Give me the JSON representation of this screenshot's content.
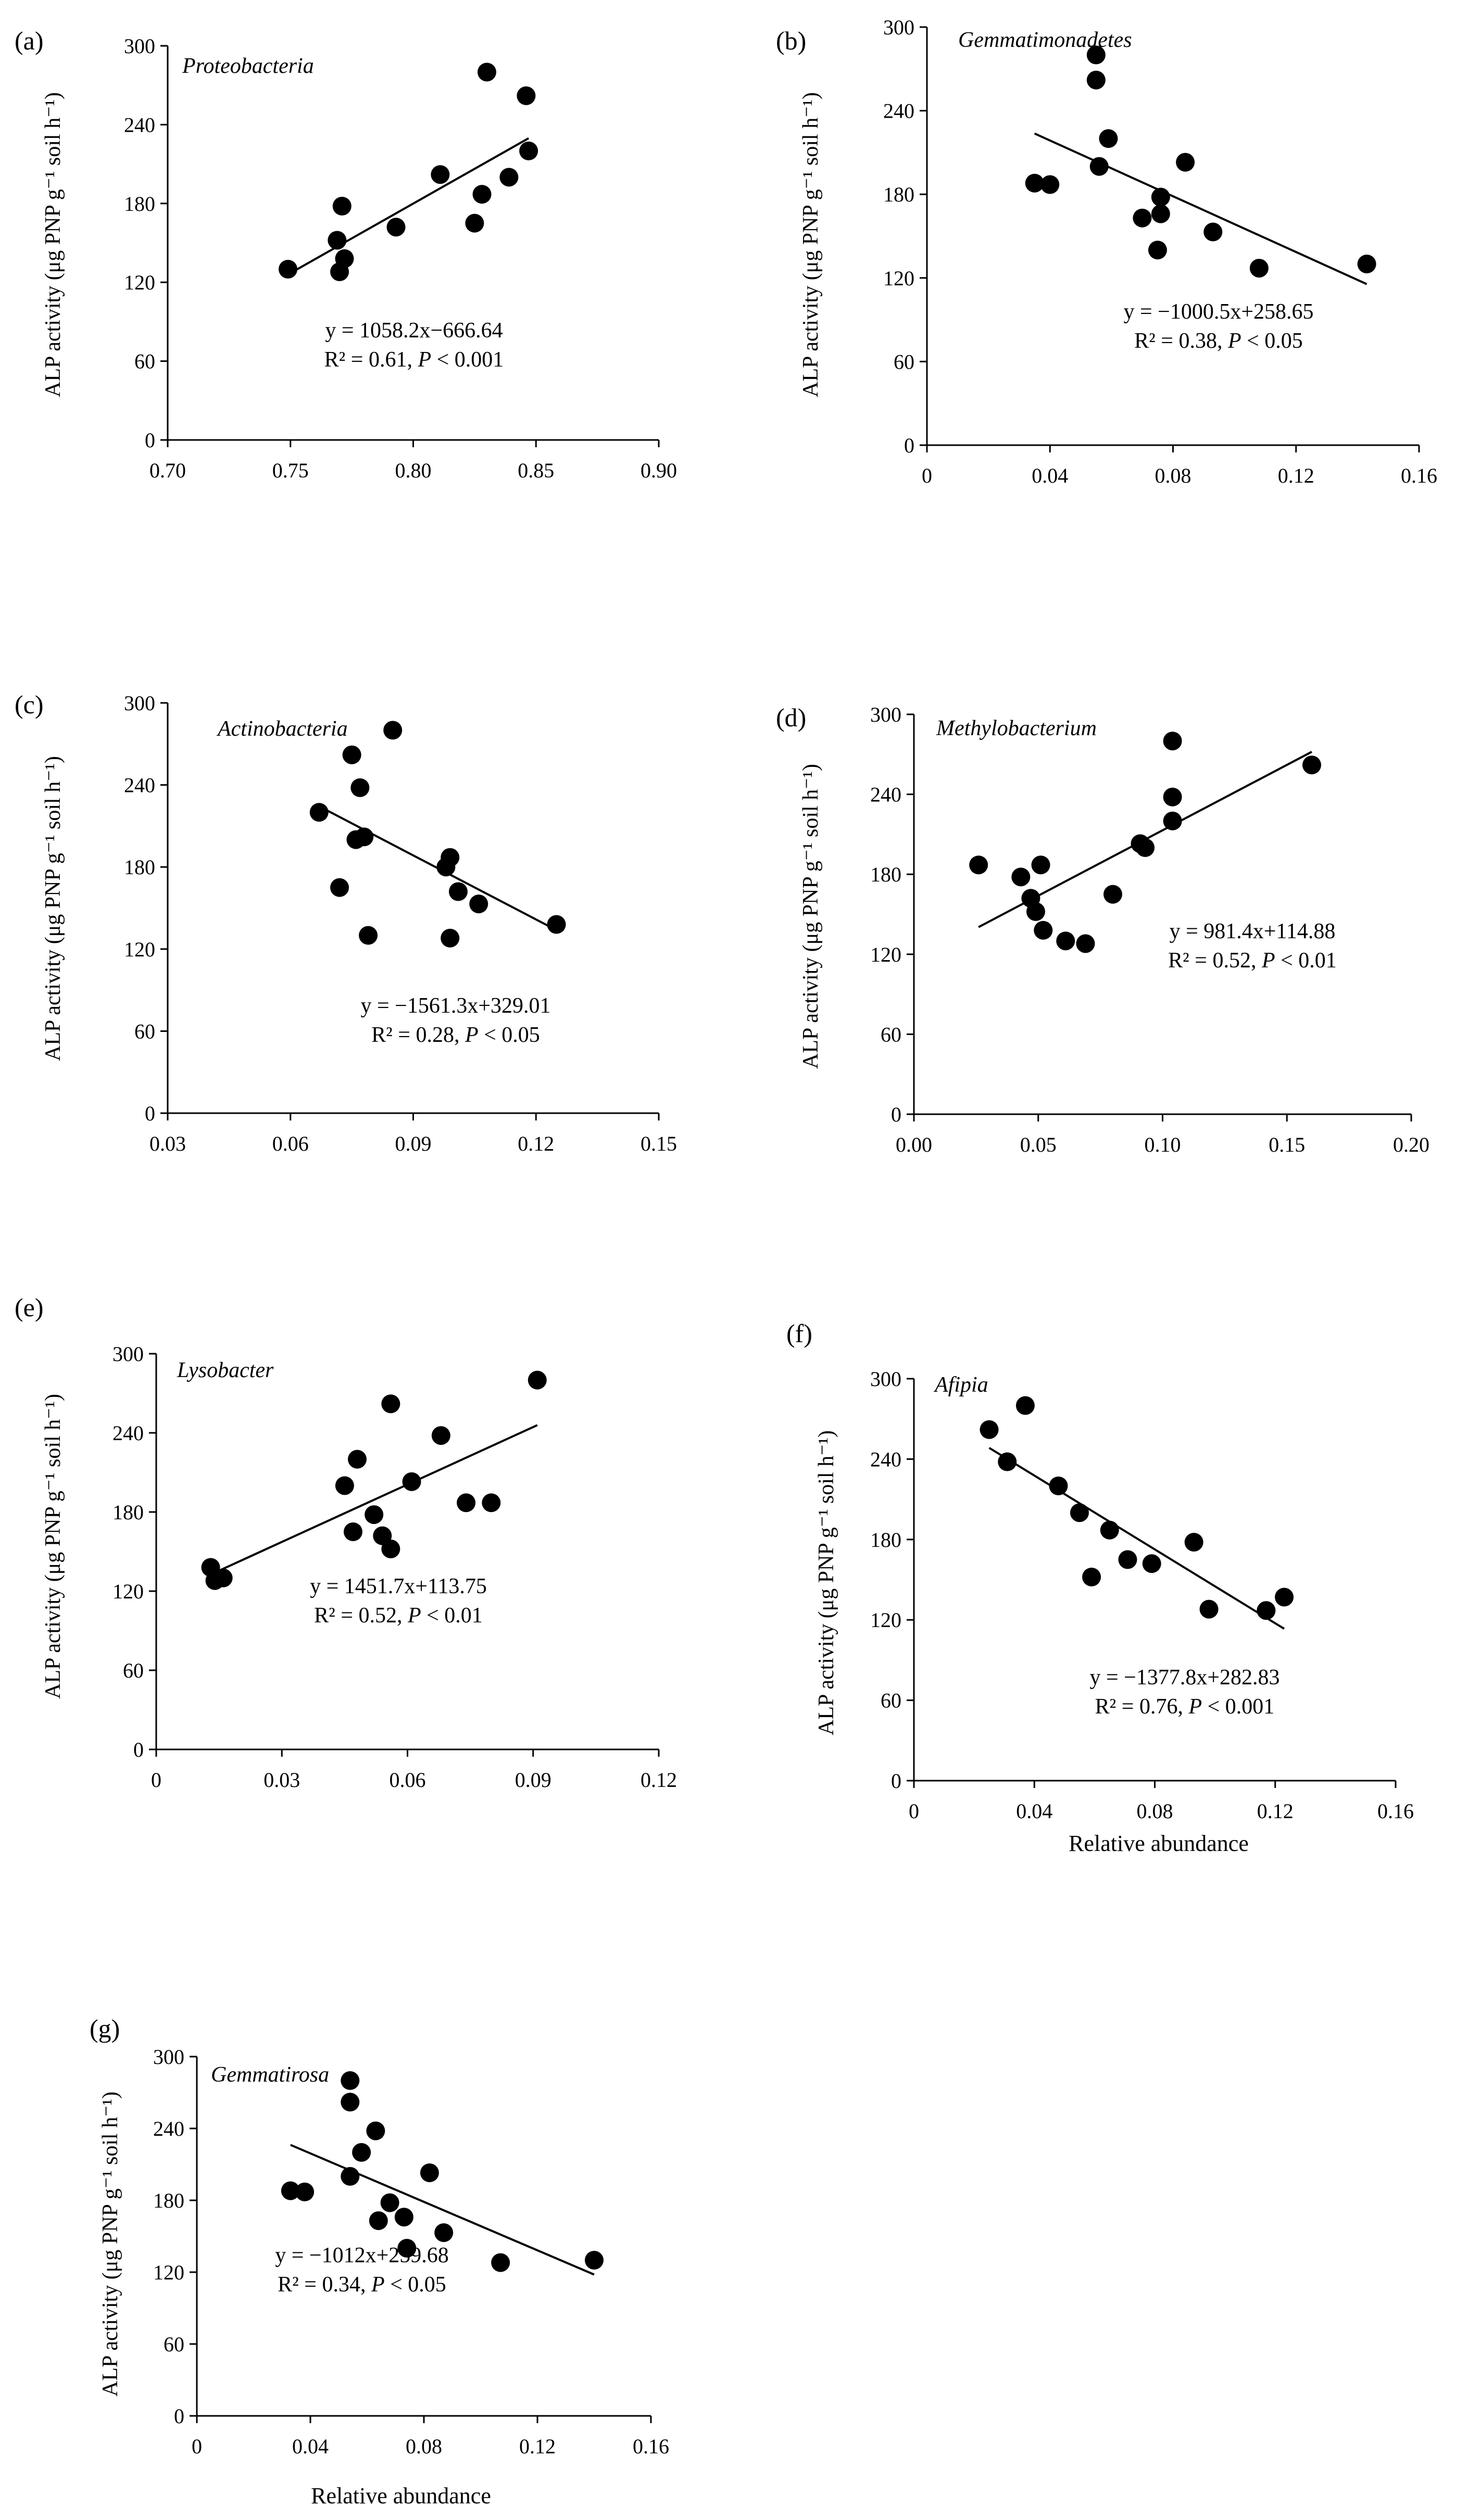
{
  "chart_data": [
    {
      "panel": "(a)",
      "title": "Proteobacteria",
      "type": "scatter",
      "ylabel": "ALP activity (μg PNP g⁻¹ soil h⁻¹)",
      "xlabel": "",
      "xlim": [
        0.7,
        0.9
      ],
      "ylim": [
        0,
        300
      ],
      "xticks": [
        "0.70",
        "0.75",
        "0.80",
        "0.85",
        "0.90"
      ],
      "yticks": [
        "0",
        "60",
        "120",
        "180",
        "240",
        "300"
      ],
      "points": [
        [
          0.749,
          130
        ],
        [
          0.769,
          152
        ],
        [
          0.77,
          128
        ],
        [
          0.771,
          178
        ],
        [
          0.772,
          138
        ],
        [
          0.793,
          162
        ],
        [
          0.811,
          202
        ],
        [
          0.825,
          165
        ],
        [
          0.828,
          187
        ],
        [
          0.83,
          280
        ],
        [
          0.839,
          200
        ],
        [
          0.846,
          262
        ],
        [
          0.847,
          220
        ]
      ],
      "fit": {
        "slope": 1058.2,
        "intercept": -666.64,
        "x_range": [
          0.75,
          0.847
        ]
      },
      "eq_line1": "y = 1058.2x−666.64",
      "eq_r2": "R² = 0.61, ",
      "eq_p": "P",
      "eq_ptail": " < 0.001"
    },
    {
      "panel": "(b)",
      "title": "Gemmatimonadetes",
      "type": "scatter",
      "ylabel": "ALP activity (μg PNP g⁻¹ soil h⁻¹)",
      "xlabel": "",
      "xlim": [
        0,
        0.16
      ],
      "ylim": [
        0,
        300
      ],
      "xticks": [
        "0",
        "0.04",
        "0.08",
        "0.12",
        "0.16"
      ],
      "yticks": [
        "0",
        "60",
        "120",
        "180",
        "240",
        "300"
      ],
      "points": [
        [
          0.035,
          188
        ],
        [
          0.04,
          187
        ],
        [
          0.055,
          280
        ],
        [
          0.055,
          262
        ],
        [
          0.056,
          200
        ],
        [
          0.059,
          220
        ],
        [
          0.07,
          163
        ],
        [
          0.075,
          140
        ],
        [
          0.076,
          178
        ],
        [
          0.076,
          166
        ],
        [
          0.084,
          203
        ],
        [
          0.093,
          153
        ],
        [
          0.108,
          127
        ],
        [
          0.143,
          130
        ]
      ],
      "fit": {
        "slope": -1000.5,
        "intercept": 258.65,
        "x_range": [
          0.035,
          0.143
        ]
      },
      "eq_line1": "y = −1000.5x+258.65",
      "eq_r2": "R² = 0.38, ",
      "eq_p": "P",
      "eq_ptail": " < 0.05"
    },
    {
      "panel": "(c)",
      "title": "Actinobacteria",
      "type": "scatter",
      "ylabel": "ALP activity (μg PNP g⁻¹ soil h⁻¹)",
      "xlabel": "",
      "xlim": [
        0.03,
        0.15
      ],
      "ylim": [
        0,
        300
      ],
      "xticks": [
        "0.03",
        "0.06",
        "0.09",
        "0.12",
        "0.15"
      ],
      "yticks": [
        "0",
        "60",
        "120",
        "180",
        "240",
        "300"
      ],
      "points": [
        [
          0.067,
          220
        ],
        [
          0.072,
          165
        ],
        [
          0.075,
          262
        ],
        [
          0.076,
          200
        ],
        [
          0.077,
          238
        ],
        [
          0.078,
          202
        ],
        [
          0.079,
          130
        ],
        [
          0.085,
          280
        ],
        [
          0.098,
          180
        ],
        [
          0.099,
          187
        ],
        [
          0.099,
          128
        ],
        [
          0.101,
          162
        ],
        [
          0.106,
          153
        ],
        [
          0.125,
          138
        ]
      ],
      "fit": {
        "slope": -1561.3,
        "intercept": 329.01,
        "x_range": [
          0.067,
          0.125
        ]
      },
      "eq_line1": "y = −1561.3x+329.01",
      "eq_r2": "R² = 0.28, ",
      "eq_p": "P",
      "eq_ptail": " < 0.05"
    },
    {
      "panel": "(d)",
      "title": "Methylobacterium",
      "type": "scatter",
      "ylabel": "ALP activity (μg PNP g⁻¹ soil h⁻¹)",
      "xlabel": "",
      "xlim": [
        0,
        0.2
      ],
      "ylim": [
        0,
        300
      ],
      "xticks": [
        "0.00",
        "0.05",
        "0.10",
        "0.15",
        "0.20"
      ],
      "yticks": [
        "0",
        "60",
        "120",
        "180",
        "240",
        "300"
      ],
      "points": [
        [
          0.026,
          187
        ],
        [
          0.043,
          178
        ],
        [
          0.047,
          162
        ],
        [
          0.049,
          152
        ],
        [
          0.051,
          187
        ],
        [
          0.052,
          138
        ],
        [
          0.061,
          130
        ],
        [
          0.069,
          128
        ],
        [
          0.08,
          165
        ],
        [
          0.091,
          203
        ],
        [
          0.093,
          200
        ],
        [
          0.104,
          280
        ],
        [
          0.104,
          238
        ],
        [
          0.104,
          220
        ],
        [
          0.16,
          262
        ]
      ],
      "fit": {
        "slope": 981.4,
        "intercept": 114.88,
        "x_range": [
          0.026,
          0.16
        ]
      },
      "eq_line1": "y = 981.4x+114.88",
      "eq_r2": "R² = 0.52, ",
      "eq_p": "P",
      "eq_ptail": " < 0.01"
    },
    {
      "panel": "(e)",
      "title": "Lysobacter",
      "type": "scatter",
      "ylabel": "ALP activity (μg PNP g⁻¹ soil h⁻¹)",
      "xlabel": "",
      "xlim": [
        0,
        0.12
      ],
      "ylim": [
        0,
        300
      ],
      "xticks": [
        "0",
        "0.03",
        "0.06",
        "0.09",
        "0.12"
      ],
      "yticks": [
        "0",
        "60",
        "120",
        "180",
        "240",
        "300"
      ],
      "points": [
        [
          0.013,
          138
        ],
        [
          0.014,
          128
        ],
        [
          0.016,
          130
        ],
        [
          0.045,
          200
        ],
        [
          0.047,
          165
        ],
        [
          0.048,
          220
        ],
        [
          0.052,
          178
        ],
        [
          0.054,
          162
        ],
        [
          0.056,
          152
        ],
        [
          0.056,
          262
        ],
        [
          0.061,
          203
        ],
        [
          0.068,
          238
        ],
        [
          0.074,
          187
        ],
        [
          0.08,
          187
        ],
        [
          0.091,
          280
        ]
      ],
      "fit": {
        "slope": 1451.7,
        "intercept": 113.75,
        "x_range": [
          0.013,
          0.091
        ]
      },
      "eq_line1": "y = 1451.7x+113.75",
      "eq_r2": "R² = 0.52, ",
      "eq_p": "P",
      "eq_ptail": " < 0.01"
    },
    {
      "panel": "(f)",
      "title": "Afipia",
      "type": "scatter",
      "ylabel": "ALP activity (μg PNP g⁻¹ soil h⁻¹)",
      "xlabel": "Relative abundance",
      "xlim": [
        0,
        0.16
      ],
      "ylim": [
        0,
        300
      ],
      "xticks": [
        "0",
        "0.04",
        "0.08",
        "0.12",
        "0.16"
      ],
      "yticks": [
        "0",
        "60",
        "120",
        "180",
        "240",
        "300"
      ],
      "points": [
        [
          0.025,
          262
        ],
        [
          0.031,
          238
        ],
        [
          0.037,
          280
        ],
        [
          0.048,
          220
        ],
        [
          0.055,
          200
        ],
        [
          0.059,
          152
        ],
        [
          0.065,
          187
        ],
        [
          0.071,
          165
        ],
        [
          0.079,
          162
        ],
        [
          0.093,
          178
        ],
        [
          0.098,
          128
        ],
        [
          0.117,
          127
        ],
        [
          0.123,
          137
        ]
      ],
      "fit": {
        "slope": -1377.8,
        "intercept": 282.83,
        "x_range": [
          0.025,
          0.123
        ]
      },
      "eq_line1": "y = −1377.8x+282.83",
      "eq_r2": "R² = 0.76, ",
      "eq_p": "P",
      "eq_ptail": " < 0.001"
    },
    {
      "panel": "(g)",
      "title": "Gemmatirosa",
      "type": "scatter",
      "ylabel": "ALP activity (μg PNP g⁻¹ soil h⁻¹)",
      "xlabel": "Relative abundance",
      "xlim": [
        0,
        0.16
      ],
      "ylim": [
        0,
        300
      ],
      "xticks": [
        "0",
        "0.04",
        "0.08",
        "0.12",
        "0.16"
      ],
      "yticks": [
        "0",
        "60",
        "120",
        "180",
        "240",
        "300"
      ],
      "points": [
        [
          0.033,
          188
        ],
        [
          0.038,
          187
        ],
        [
          0.054,
          280
        ],
        [
          0.054,
          262
        ],
        [
          0.054,
          200
        ],
        [
          0.058,
          220
        ],
        [
          0.063,
          238
        ],
        [
          0.064,
          163
        ],
        [
          0.068,
          178
        ],
        [
          0.073,
          166
        ],
        [
          0.074,
          140
        ],
        [
          0.082,
          203
        ],
        [
          0.087,
          153
        ],
        [
          0.107,
          128
        ],
        [
          0.14,
          130
        ]
      ],
      "fit": {
        "slope": -1012,
        "intercept": 259.68,
        "x_range": [
          0.033,
          0.14
        ]
      },
      "eq_line1": "y = −1012x+259.68",
      "eq_r2": "R² = 0.34, ",
      "eq_p": "P",
      "eq_ptail": " < 0.05"
    }
  ]
}
